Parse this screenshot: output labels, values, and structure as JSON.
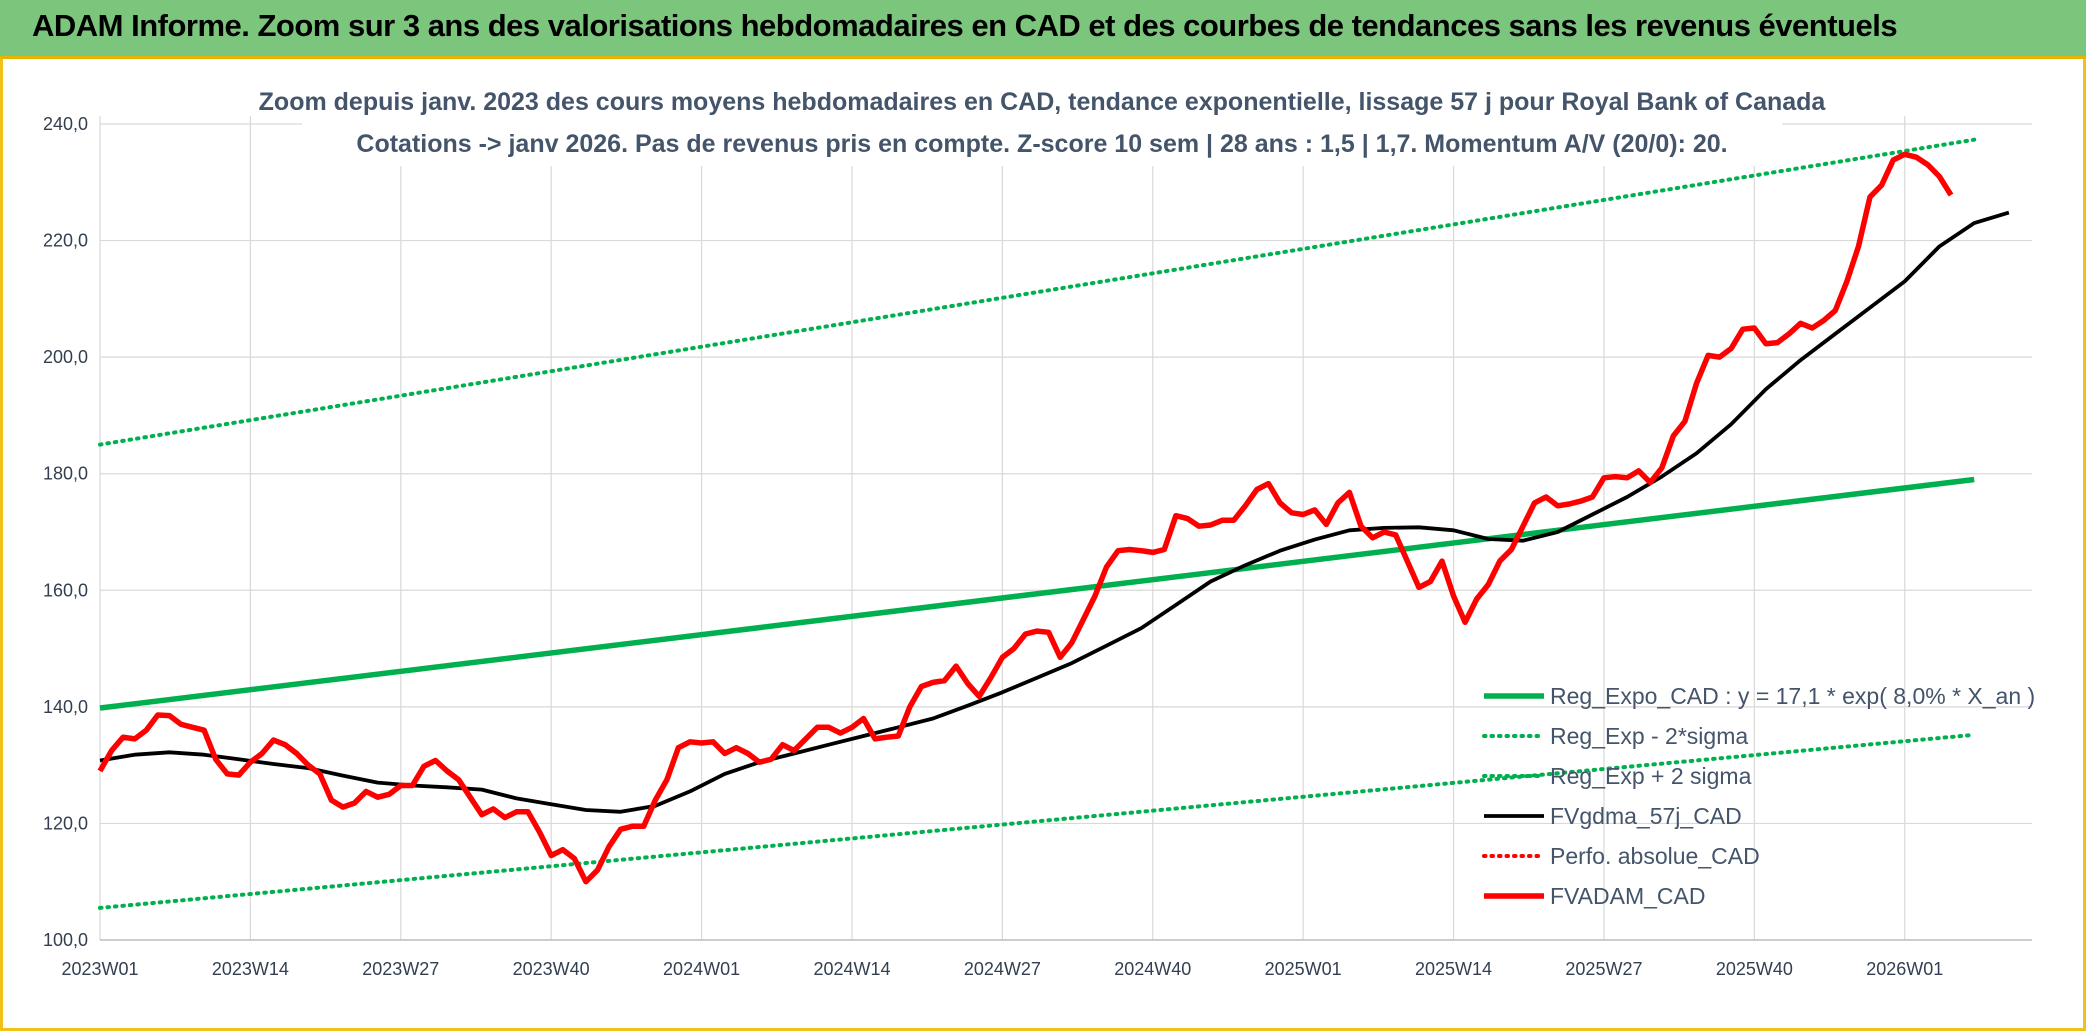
{
  "header": {
    "title": "ADAM Informe. Zoom sur 3 ans des valorisations hebdomadaires en CAD et des courbes de tendances sans les revenus éventuels"
  },
  "chart_data": {
    "type": "line",
    "title_line1": "Zoom depuis janv. 2023 des cours moyens hebdomadaires en CAD, tendance exponentielle, lissage 57 j pour Royal Bank of Canada",
    "title_line2": "Cotations -> janv 2026. Pas de revenus pris en compte. Z-score 10 sem | 28 ans : 1,5 | 1,7. Momentum A/V (20/0): 20.",
    "xlabel": "",
    "ylabel": "",
    "ylim": [
      100,
      240
    ],
    "y_ticks": [
      "100,0",
      "120,0",
      "140,0",
      "160,0",
      "180,0",
      "200,0",
      "220,0",
      "240,0"
    ],
    "x_ticks": [
      "2023W01",
      "2023W14",
      "2023W27",
      "2023W40",
      "2024W01",
      "2024W14",
      "2024W27",
      "2024W40",
      "2025W01",
      "2025W14",
      "2025W27",
      "2025W40",
      "2026W01"
    ],
    "x_range_weeks": [
      0,
      162
    ],
    "grid": true,
    "legend_position": "bottom-right",
    "series": [
      {
        "name": "Reg_Expo_CAD : y = 17,1 * exp( 8,0% *  X_an )",
        "color": "#00b050",
        "style": "solid-thick",
        "points": [
          [
            0,
            139.8
          ],
          [
            162,
            179.0
          ]
        ]
      },
      {
        "name": "Reg_Exp - 2*sigma",
        "color": "#00b050",
        "style": "dotted",
        "points": [
          [
            0,
            105.5
          ],
          [
            162,
            135.2
          ]
        ]
      },
      {
        "name": "Reg_Exp + 2 sigma",
        "color": "#00b050",
        "style": "dotted",
        "points": [
          [
            0,
            185.0
          ],
          [
            162,
            237.3
          ]
        ]
      },
      {
        "name": "FVgdma_57j_CAD",
        "color": "#000000",
        "style": "solid",
        "points": [
          [
            0,
            130.8
          ],
          [
            3,
            131.8
          ],
          [
            6,
            132.2
          ],
          [
            9,
            131.8
          ],
          [
            12,
            131.0
          ],
          [
            15,
            130.2
          ],
          [
            18,
            129.5
          ],
          [
            21,
            128.2
          ],
          [
            24,
            127.0
          ],
          [
            27,
            126.5
          ],
          [
            30,
            126.2
          ],
          [
            33,
            125.8
          ],
          [
            36,
            124.3
          ],
          [
            39,
            123.3
          ],
          [
            42,
            122.3
          ],
          [
            45,
            122.0
          ],
          [
            48,
            123.0
          ],
          [
            51,
            125.5
          ],
          [
            54,
            128.5
          ],
          [
            57,
            130.5
          ],
          [
            60,
            132.0
          ],
          [
            63,
            133.5
          ],
          [
            66,
            135.0
          ],
          [
            69,
            136.5
          ],
          [
            72,
            138.0
          ],
          [
            75,
            140.2
          ],
          [
            78,
            142.5
          ],
          [
            81,
            145.0
          ],
          [
            84,
            147.5
          ],
          [
            87,
            150.5
          ],
          [
            90,
            153.5
          ],
          [
            93,
            157.5
          ],
          [
            96,
            161.5
          ],
          [
            99,
            164.3
          ],
          [
            102,
            166.8
          ],
          [
            105,
            168.7
          ],
          [
            108,
            170.3
          ],
          [
            111,
            170.7
          ],
          [
            114,
            170.8
          ],
          [
            117,
            170.3
          ],
          [
            120,
            168.8
          ],
          [
            123,
            168.5
          ],
          [
            126,
            170.0
          ],
          [
            129,
            173.0
          ],
          [
            132,
            176.0
          ],
          [
            135,
            179.5
          ],
          [
            138,
            183.5
          ],
          [
            141,
            188.5
          ],
          [
            144,
            194.5
          ],
          [
            147,
            199.5
          ],
          [
            150,
            204.0
          ],
          [
            153,
            208.5
          ],
          [
            156,
            213.0
          ],
          [
            159,
            219.0
          ],
          [
            162,
            223.0
          ],
          [
            165,
            224.8
          ]
        ]
      },
      {
        "name": "Perfo. absolue_CAD",
        "color": "#ff0000",
        "style": "dotted",
        "points": []
      },
      {
        "name": "FVADAM_CAD",
        "color": "#ff0000",
        "style": "solid-thick",
        "points": [
          [
            0,
            129.0
          ],
          [
            1,
            132.5
          ],
          [
            2,
            134.8
          ],
          [
            3,
            134.5
          ],
          [
            4,
            136.0
          ],
          [
            5,
            138.6
          ],
          [
            6,
            138.5
          ],
          [
            7,
            137.0
          ],
          [
            8,
            136.5
          ],
          [
            9,
            136.0
          ],
          [
            10,
            131.0
          ],
          [
            11,
            128.5
          ],
          [
            12,
            128.3
          ],
          [
            13,
            130.5
          ],
          [
            14,
            132.0
          ],
          [
            15,
            134.3
          ],
          [
            16,
            133.5
          ],
          [
            17,
            132.0
          ],
          [
            18,
            130.0
          ],
          [
            19,
            128.5
          ],
          [
            20,
            124.0
          ],
          [
            21,
            122.8
          ],
          [
            22,
            123.5
          ],
          [
            23,
            125.5
          ],
          [
            24,
            124.5
          ],
          [
            25,
            125.0
          ],
          [
            26,
            126.5
          ],
          [
            27,
            126.5
          ],
          [
            28,
            129.8
          ],
          [
            29,
            130.8
          ],
          [
            30,
            129.0
          ],
          [
            31,
            127.5
          ],
          [
            32,
            124.5
          ],
          [
            33,
            121.5
          ],
          [
            34,
            122.5
          ],
          [
            35,
            121.0
          ],
          [
            36,
            122.0
          ],
          [
            37,
            122.0
          ],
          [
            38,
            118.5
          ],
          [
            39,
            114.5
          ],
          [
            40,
            115.5
          ],
          [
            41,
            114.0
          ],
          [
            42,
            110.0
          ],
          [
            43,
            112.0
          ],
          [
            44,
            116.0
          ],
          [
            45,
            119.0
          ],
          [
            46,
            119.5
          ],
          [
            47,
            119.5
          ],
          [
            48,
            124.0
          ],
          [
            49,
            127.5
          ],
          [
            50,
            133.0
          ],
          [
            51,
            134.0
          ],
          [
            52,
            133.8
          ],
          [
            53,
            134.0
          ],
          [
            54,
            132.0
          ],
          [
            55,
            133.0
          ],
          [
            56,
            132.0
          ],
          [
            57,
            130.5
          ],
          [
            58,
            131.0
          ],
          [
            59,
            133.5
          ],
          [
            60,
            132.5
          ],
          [
            61,
            134.5
          ],
          [
            62,
            136.5
          ],
          [
            63,
            136.5
          ],
          [
            64,
            135.5
          ],
          [
            65,
            136.5
          ],
          [
            66,
            138.0
          ],
          [
            67,
            134.5
          ],
          [
            68,
            134.8
          ],
          [
            69,
            135.0
          ],
          [
            70,
            140.0
          ],
          [
            71,
            143.5
          ],
          [
            72,
            144.2
          ],
          [
            73,
            144.5
          ],
          [
            74,
            147.0
          ],
          [
            75,
            144.0
          ],
          [
            76,
            141.8
          ],
          [
            77,
            145.0
          ],
          [
            78,
            148.5
          ],
          [
            79,
            150.0
          ],
          [
            80,
            152.5
          ],
          [
            81,
            153.0
          ],
          [
            82,
            152.8
          ],
          [
            83,
            148.5
          ],
          [
            84,
            151.0
          ],
          [
            85,
            155.0
          ],
          [
            86,
            159.0
          ],
          [
            87,
            164.0
          ],
          [
            88,
            166.8
          ],
          [
            89,
            167.0
          ],
          [
            90,
            166.8
          ],
          [
            91,
            166.5
          ],
          [
            92,
            167.0
          ],
          [
            93,
            172.8
          ],
          [
            94,
            172.3
          ],
          [
            95,
            171.0
          ],
          [
            96,
            171.2
          ],
          [
            97,
            172.0
          ],
          [
            98,
            172.0
          ],
          [
            99,
            174.5
          ],
          [
            100,
            177.3
          ],
          [
            101,
            178.3
          ],
          [
            102,
            175.0
          ],
          [
            103,
            173.3
          ],
          [
            104,
            173.0
          ],
          [
            105,
            173.8
          ],
          [
            106,
            171.3
          ],
          [
            107,
            175.0
          ],
          [
            108,
            176.8
          ],
          [
            109,
            171.0
          ],
          [
            110,
            169.0
          ],
          [
            111,
            170.0
          ],
          [
            112,
            169.5
          ],
          [
            113,
            165.0
          ],
          [
            114,
            160.5
          ],
          [
            115,
            161.5
          ],
          [
            116,
            165.0
          ],
          [
            117,
            159.0
          ],
          [
            118,
            154.5
          ],
          [
            119,
            158.5
          ],
          [
            120,
            161.0
          ],
          [
            121,
            165.0
          ],
          [
            122,
            167.0
          ],
          [
            123,
            171.0
          ],
          [
            124,
            175.0
          ],
          [
            125,
            176.0
          ],
          [
            126,
            174.5
          ],
          [
            127,
            174.8
          ],
          [
            128,
            175.3
          ],
          [
            129,
            176.0
          ],
          [
            130,
            179.3
          ],
          [
            131,
            179.5
          ],
          [
            132,
            179.3
          ],
          [
            133,
            180.5
          ],
          [
            134,
            178.5
          ],
          [
            135,
            181.0
          ],
          [
            136,
            186.5
          ],
          [
            137,
            189.0
          ],
          [
            138,
            195.5
          ],
          [
            139,
            200.3
          ],
          [
            140,
            200.0
          ],
          [
            141,
            201.5
          ],
          [
            142,
            204.8
          ],
          [
            143,
            205.0
          ],
          [
            144,
            202.3
          ],
          [
            145,
            202.5
          ],
          [
            146,
            204.0
          ],
          [
            147,
            205.8
          ],
          [
            148,
            205.0
          ],
          [
            149,
            206.3
          ],
          [
            150,
            208.0
          ],
          [
            151,
            213.0
          ],
          [
            152,
            219.0
          ],
          [
            153,
            227.5
          ],
          [
            154,
            229.5
          ],
          [
            155,
            233.8
          ],
          [
            156,
            234.8
          ],
          [
            157,
            234.3
          ],
          [
            158,
            233.0
          ],
          [
            159,
            231.0
          ],
          [
            160,
            227.8
          ]
        ]
      }
    ]
  }
}
